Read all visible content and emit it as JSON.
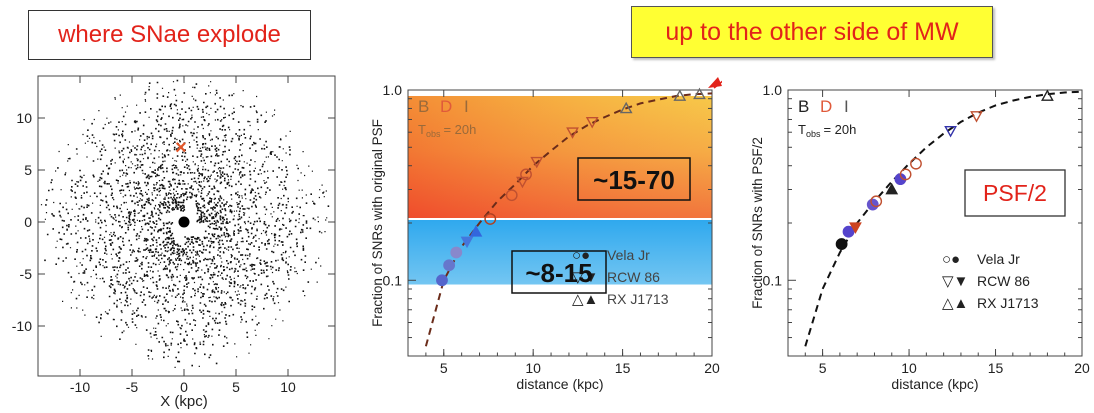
{
  "headers": {
    "left_label": "where SNae explode",
    "callout": "up to the other side of MW"
  },
  "colors": {
    "accent_red": "#e2231a",
    "callout_bg": "#ffff33",
    "B": "#222222",
    "D": "#e05a3a",
    "I": "#666666"
  },
  "galaxy": {
    "xlabel": "X (kpc)",
    "xticks": [
      "-10",
      "-5",
      "0",
      "5",
      "10"
    ],
    "yticks": [
      "10",
      "5",
      "0",
      "-5",
      "-10"
    ],
    "marker": "×"
  },
  "chart_data": [
    {
      "type": "scatter",
      "title": "",
      "xlabel": "distance (kpc)",
      "ylabel": "Fraction of SNRs with original PSF",
      "xlim": [
        3,
        20
      ],
      "ylim": [
        0.04,
        1.0
      ],
      "yscale": "log",
      "xticks": [
        "5",
        "10",
        "15",
        "20"
      ],
      "yticks": [
        "0.1",
        "1.0"
      ],
      "legend_letters": [
        "B",
        "D",
        "I"
      ],
      "tobs": "T",
      "tobs_sub": "obs",
      "tobs_val": "= 20h",
      "boxes": [
        "~15-70",
        "~8-15"
      ],
      "legend": [
        {
          "symbols": "○●",
          "name": "Vela Jr"
        },
        {
          "symbols": "▽▼",
          "name": "RCW 86"
        },
        {
          "symbols": "△▲",
          "name": "RX J1713"
        }
      ],
      "curve_x": [
        4,
        5,
        6,
        7,
        8,
        9,
        10,
        11,
        12,
        13,
        14,
        15,
        16,
        17,
        18,
        19,
        20
      ],
      "curve_y": [
        0.045,
        0.1,
        0.15,
        0.2,
        0.26,
        0.32,
        0.4,
        0.48,
        0.57,
        0.65,
        0.72,
        0.79,
        0.85,
        0.89,
        0.93,
        0.95,
        0.96
      ],
      "points": [
        {
          "x": 4.9,
          "y": 0.1,
          "m": "circle",
          "c": "#5566cc"
        },
        {
          "x": 5.3,
          "y": 0.12,
          "m": "circle",
          "c": "#6677cc"
        },
        {
          "x": 5.7,
          "y": 0.14,
          "m": "circle",
          "c": "#8888cc"
        },
        {
          "x": 6.3,
          "y": 0.16,
          "m": "tri_down",
          "c": "#4477dd"
        },
        {
          "x": 6.8,
          "y": 0.18,
          "m": "tri_up",
          "c": "#3366dd"
        },
        {
          "x": 7.6,
          "y": 0.21,
          "m": "circle_o",
          "c": "#b04020"
        },
        {
          "x": 8.8,
          "y": 0.28,
          "m": "circle_o",
          "c": "#c05030"
        },
        {
          "x": 9.4,
          "y": 0.33,
          "m": "tri_down_o",
          "c": "#c05030"
        },
        {
          "x": 9.6,
          "y": 0.36,
          "m": "circle_o",
          "c": "#c05030"
        },
        {
          "x": 10.2,
          "y": 0.42,
          "m": "tri_down_o",
          "c": "#c05030"
        },
        {
          "x": 12.2,
          "y": 0.6,
          "m": "tri_down_o",
          "c": "#c05030"
        },
        {
          "x": 13.3,
          "y": 0.68,
          "m": "tri_down_o",
          "c": "#c05030"
        },
        {
          "x": 15.2,
          "y": 0.8,
          "m": "tri_up_o",
          "c": "#666666"
        },
        {
          "x": 18.2,
          "y": 0.93,
          "m": "tri_up_o",
          "c": "#666666"
        },
        {
          "x": 19.3,
          "y": 0.95,
          "m": "tri_up_o",
          "c": "#666666"
        }
      ]
    },
    {
      "type": "scatter",
      "title": "",
      "xlabel": "distance (kpc)",
      "ylabel": "Fraction of SNRs with PSF/2",
      "xlim": [
        3,
        20
      ],
      "ylim": [
        0.04,
        1.0
      ],
      "yscale": "log",
      "xticks": [
        "5",
        "10",
        "15",
        "20"
      ],
      "yticks": [
        "0.1",
        "1.0"
      ],
      "legend_letters": [
        "B",
        "D",
        "I"
      ],
      "tobs": "T",
      "tobs_sub": "obs",
      "tobs_val": "= 20h",
      "box": "PSF/2",
      "legend": [
        {
          "symbols": "○●",
          "name": "Vela Jr"
        },
        {
          "symbols": "▽▼",
          "name": "RCW 86"
        },
        {
          "symbols": "△▲",
          "name": "RX J1713"
        }
      ],
      "curve_x": [
        4,
        5,
        6,
        7,
        8,
        9,
        10,
        11,
        12,
        13,
        14,
        15,
        16,
        17,
        18,
        19,
        20
      ],
      "curve_y": [
        0.045,
        0.09,
        0.14,
        0.2,
        0.26,
        0.33,
        0.41,
        0.5,
        0.59,
        0.68,
        0.76,
        0.83,
        0.88,
        0.92,
        0.95,
        0.97,
        0.98
      ],
      "points": [
        {
          "x": 6.1,
          "y": 0.155,
          "m": "circle",
          "c": "#111111"
        },
        {
          "x": 6.5,
          "y": 0.18,
          "m": "circle",
          "c": "#5544cc"
        },
        {
          "x": 6.9,
          "y": 0.19,
          "m": "tri_down",
          "c": "#cc4422"
        },
        {
          "x": 7.9,
          "y": 0.25,
          "m": "circle",
          "c": "#6655cc"
        },
        {
          "x": 8.1,
          "y": 0.26,
          "m": "circle_o",
          "c": "#c05030"
        },
        {
          "x": 9.0,
          "y": 0.3,
          "m": "tri_up",
          "c": "#222222"
        },
        {
          "x": 9.5,
          "y": 0.34,
          "m": "circle",
          "c": "#5544cc"
        },
        {
          "x": 9.8,
          "y": 0.36,
          "m": "circle_o",
          "c": "#c05030"
        },
        {
          "x": 10.4,
          "y": 0.41,
          "m": "circle_o",
          "c": "#c05030"
        },
        {
          "x": 12.4,
          "y": 0.61,
          "m": "tri_down_o",
          "c": "#3333aa"
        },
        {
          "x": 13.9,
          "y": 0.73,
          "m": "tri_down_o",
          "c": "#c05030"
        },
        {
          "x": 18.0,
          "y": 0.93,
          "m": "tri_up_o",
          "c": "#222222"
        }
      ]
    }
  ]
}
